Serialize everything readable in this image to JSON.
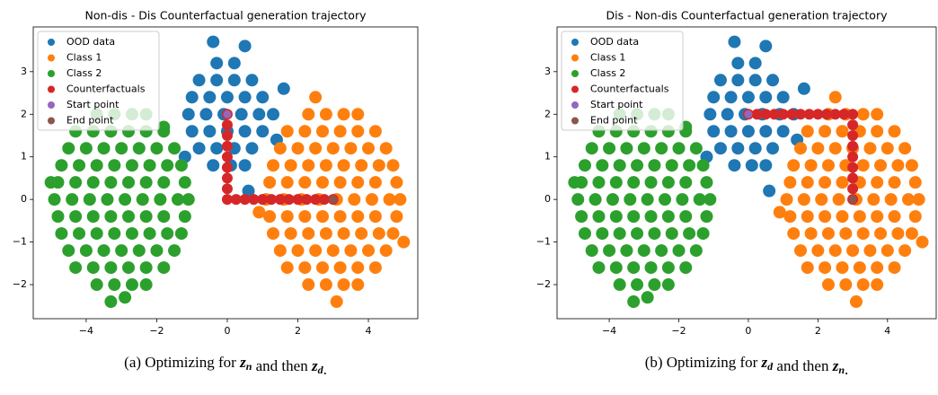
{
  "chart_data": [
    {
      "type": "scatter",
      "title": "Non-dis - Dis Counterfactual generation trajectory",
      "caption": [
        "(a) Optimizing for ",
        {
          "var": "z",
          "sub": "n"
        },
        " and then ",
        {
          "var": "z",
          "sub": "d"
        },
        "."
      ],
      "xlim": [
        -5.5,
        5.4
      ],
      "ylim": [
        -2.8,
        4.05
      ],
      "xticks": [
        {
          "value": -4,
          "label": "−4"
        },
        {
          "value": -2,
          "label": "−2"
        },
        0,
        2,
        4
      ],
      "yticks": [
        {
          "value": -2,
          "label": "−2"
        },
        {
          "value": -1,
          "label": "−1"
        },
        0,
        1,
        2,
        3
      ],
      "legend": "upper left",
      "series": [
        {
          "name": "OOD data",
          "color": "#1f77b4",
          "x": [
            -0.3,
            0.2,
            -0.8,
            -0.3,
            0.2,
            0.7,
            -1.0,
            -0.5,
            0,
            0.5,
            1.0,
            -1.1,
            -0.6,
            -0.1,
            0.4,
            0.9,
            1.3,
            -1.0,
            -0.5,
            0,
            0.5,
            1.0,
            -0.8,
            -0.3,
            0.2,
            0.7,
            -0.4,
            0.1,
            0.5,
            -0.4,
            0.5,
            1.6,
            -1.2,
            0.6,
            1.4
          ],
          "y": [
            3.2,
            3.2,
            2.8,
            2.8,
            2.8,
            2.8,
            2.4,
            2.4,
            2.4,
            2.4,
            2.4,
            2.0,
            2.0,
            2.0,
            2.0,
            2.0,
            2.0,
            1.6,
            1.6,
            1.6,
            1.6,
            1.6,
            1.2,
            1.2,
            1.2,
            1.2,
            0.8,
            0.8,
            0.8,
            3.7,
            3.6,
            2.6,
            1.0,
            0.2,
            1.4
          ]
        },
        {
          "name": "Class 1",
          "color": "#ff7f0e",
          "x": [
            2.3,
            2.8,
            3.3,
            3.7,
            1.7,
            2.2,
            2.7,
            3.2,
            3.7,
            4.2,
            1.5,
            2.0,
            2.5,
            3.0,
            3.5,
            4.0,
            4.5,
            1.3,
            1.8,
            2.3,
            2.8,
            3.3,
            3.8,
            4.3,
            4.7,
            1.2,
            1.7,
            2.2,
            2.7,
            3.2,
            3.7,
            4.2,
            4.8,
            1.1,
            1.6,
            2.1,
            2.6,
            3.1,
            3.6,
            4.1,
            4.6,
            4.9,
            1.2,
            1.7,
            2.2,
            2.7,
            3.2,
            3.7,
            4.2,
            4.8,
            1.3,
            1.8,
            2.3,
            2.8,
            3.3,
            3.8,
            4.3,
            4.7,
            1.5,
            2.0,
            2.5,
            3.0,
            3.5,
            4.0,
            4.5,
            1.7,
            2.2,
            2.7,
            3.2,
            3.7,
            4.2,
            2.3,
            2.8,
            3.3,
            3.7,
            2.5,
            0.9,
            5.0,
            3.1
          ],
          "y": [
            2,
            2,
            2,
            2,
            1.6,
            1.6,
            1.6,
            1.6,
            1.6,
            1.6,
            1.2,
            1.2,
            1.2,
            1.2,
            1.2,
            1.2,
            1.2,
            0.8,
            0.8,
            0.8,
            0.8,
            0.8,
            0.8,
            0.8,
            0.8,
            0.4,
            0.4,
            0.4,
            0.4,
            0.4,
            0.4,
            0.4,
            0.4,
            0,
            0,
            0,
            0,
            0,
            0,
            0,
            0,
            0,
            -0.4,
            -0.4,
            -0.4,
            -0.4,
            -0.4,
            -0.4,
            -0.4,
            -0.4,
            -0.8,
            -0.8,
            -0.8,
            -0.8,
            -0.8,
            -0.8,
            -0.8,
            -0.8,
            -1.2,
            -1.2,
            -1.2,
            -1.2,
            -1.2,
            -1.2,
            -1.2,
            -1.6,
            -1.6,
            -1.6,
            -1.6,
            -1.6,
            -1.6,
            -2,
            -2,
            -2,
            -2,
            2.4,
            -0.3,
            -1.0,
            -2.4
          ]
        },
        {
          "name": "Class 2",
          "color": "#2ca02c",
          "x": [
            -3.7,
            -3.2,
            -2.7,
            -2.3,
            -4.3,
            -3.8,
            -3.3,
            -2.8,
            -2.3,
            -1.8,
            -4.5,
            -4.0,
            -3.5,
            -3.0,
            -2.5,
            -2.0,
            -1.5,
            -4.7,
            -4.2,
            -3.7,
            -3.2,
            -2.7,
            -2.2,
            -1.7,
            -1.3,
            -4.8,
            -4.3,
            -3.8,
            -3.3,
            -2.8,
            -2.3,
            -1.8,
            -1.2,
            -4.9,
            -4.4,
            -3.9,
            -3.4,
            -2.9,
            -2.4,
            -1.9,
            -1.4,
            -1.1,
            -4.8,
            -4.3,
            -3.8,
            -3.3,
            -2.8,
            -2.3,
            -1.8,
            -1.2,
            -4.7,
            -4.2,
            -3.7,
            -3.2,
            -2.7,
            -2.2,
            -1.7,
            -1.3,
            -4.5,
            -4.0,
            -3.5,
            -3.0,
            -2.5,
            -2.0,
            -1.5,
            -4.3,
            -3.8,
            -3.3,
            -2.8,
            -2.3,
            -1.8,
            -3.7,
            -3.2,
            -2.7,
            -2.3,
            -3.3,
            -5.0,
            -1.8,
            -2.9
          ],
          "y": [
            2,
            2,
            2,
            2,
            1.6,
            1.6,
            1.6,
            1.6,
            1.6,
            1.6,
            1.2,
            1.2,
            1.2,
            1.2,
            1.2,
            1.2,
            1.2,
            0.8,
            0.8,
            0.8,
            0.8,
            0.8,
            0.8,
            0.8,
            0.8,
            0.4,
            0.4,
            0.4,
            0.4,
            0.4,
            0.4,
            0.4,
            0.4,
            0,
            0,
            0,
            0,
            0,
            0,
            0,
            0,
            0,
            -0.4,
            -0.4,
            -0.4,
            -0.4,
            -0.4,
            -0.4,
            -0.4,
            -0.4,
            -0.8,
            -0.8,
            -0.8,
            -0.8,
            -0.8,
            -0.8,
            -0.8,
            -0.8,
            -1.2,
            -1.2,
            -1.2,
            -1.2,
            -1.2,
            -1.2,
            -1.2,
            -1.6,
            -1.6,
            -1.6,
            -1.6,
            -1.6,
            -1.6,
            -2,
            -2,
            -2,
            -2,
            -2.4,
            0.4,
            1.7,
            -2.3
          ]
        },
        {
          "name": "Counterfactuals",
          "color": "#d62728",
          "x": [
            0,
            0,
            0,
            0,
            0,
            0,
            0,
            0,
            0,
            0.25,
            0.5,
            0.75,
            1,
            1.25,
            1.5,
            1.75,
            2,
            2.25,
            2.5,
            2.75,
            3
          ],
          "y": [
            2,
            1.75,
            1.5,
            1.25,
            1,
            0.75,
            0.5,
            0.25,
            0,
            0,
            0,
            0,
            0,
            0,
            0,
            0,
            0,
            0,
            0,
            0,
            0
          ]
        },
        {
          "name": "Start point",
          "color": "#9467bd",
          "x": [
            0
          ],
          "y": [
            2
          ]
        },
        {
          "name": "End point",
          "color": "#8c564b",
          "x": [
            3
          ],
          "y": [
            0
          ]
        }
      ]
    },
    {
      "type": "scatter",
      "title": "Dis - Non-dis Counterfactual generation trajectory",
      "caption": [
        "(b) Optimizing for ",
        {
          "var": "z",
          "sub": "d"
        },
        " and then ",
        {
          "var": "z",
          "sub": "n"
        },
        "."
      ],
      "xlim": [
        -5.5,
        5.4
      ],
      "ylim": [
        -2.8,
        4.05
      ],
      "xticks": [
        {
          "value": -4,
          "label": "−4"
        },
        {
          "value": -2,
          "label": "−2"
        },
        0,
        2,
        4
      ],
      "yticks": [
        {
          "value": -2,
          "label": "−2"
        },
        {
          "value": -1,
          "label": "−1"
        },
        0,
        1,
        2,
        3
      ],
      "legend": "upper left",
      "series": [
        {
          "name": "OOD data",
          "color": "#1f77b4",
          "x": [
            -0.3,
            0.2,
            -0.8,
            -0.3,
            0.2,
            0.7,
            -1.0,
            -0.5,
            0,
            0.5,
            1.0,
            -1.1,
            -0.6,
            -0.1,
            0.4,
            0.9,
            1.3,
            -1.0,
            -0.5,
            0,
            0.5,
            1.0,
            -0.8,
            -0.3,
            0.2,
            0.7,
            -0.4,
            0.1,
            0.5,
            -0.4,
            0.5,
            1.6,
            -1.2,
            0.6,
            1.4
          ],
          "y": [
            3.2,
            3.2,
            2.8,
            2.8,
            2.8,
            2.8,
            2.4,
            2.4,
            2.4,
            2.4,
            2.4,
            2.0,
            2.0,
            2.0,
            2.0,
            2.0,
            2.0,
            1.6,
            1.6,
            1.6,
            1.6,
            1.6,
            1.2,
            1.2,
            1.2,
            1.2,
            0.8,
            0.8,
            0.8,
            3.7,
            3.6,
            2.6,
            1.0,
            0.2,
            1.4
          ]
        },
        {
          "name": "Class 1",
          "color": "#ff7f0e",
          "x": [
            2.3,
            2.8,
            3.3,
            3.7,
            1.7,
            2.2,
            2.7,
            3.2,
            3.7,
            4.2,
            1.5,
            2.0,
            2.5,
            3.0,
            3.5,
            4.0,
            4.5,
            1.3,
            1.8,
            2.3,
            2.8,
            3.3,
            3.8,
            4.3,
            4.7,
            1.2,
            1.7,
            2.2,
            2.7,
            3.2,
            3.7,
            4.2,
            4.8,
            1.1,
            1.6,
            2.1,
            2.6,
            3.1,
            3.6,
            4.1,
            4.6,
            4.9,
            1.2,
            1.7,
            2.2,
            2.7,
            3.2,
            3.7,
            4.2,
            4.8,
            1.3,
            1.8,
            2.3,
            2.8,
            3.3,
            3.8,
            4.3,
            4.7,
            1.5,
            2.0,
            2.5,
            3.0,
            3.5,
            4.0,
            4.5,
            1.7,
            2.2,
            2.7,
            3.2,
            3.7,
            4.2,
            2.3,
            2.8,
            3.3,
            3.7,
            2.5,
            0.9,
            5.0,
            3.1
          ],
          "y": [
            2,
            2,
            2,
            2,
            1.6,
            1.6,
            1.6,
            1.6,
            1.6,
            1.6,
            1.2,
            1.2,
            1.2,
            1.2,
            1.2,
            1.2,
            1.2,
            0.8,
            0.8,
            0.8,
            0.8,
            0.8,
            0.8,
            0.8,
            0.8,
            0.4,
            0.4,
            0.4,
            0.4,
            0.4,
            0.4,
            0.4,
            0.4,
            0,
            0,
            0,
            0,
            0,
            0,
            0,
            0,
            0,
            -0.4,
            -0.4,
            -0.4,
            -0.4,
            -0.4,
            -0.4,
            -0.4,
            -0.4,
            -0.8,
            -0.8,
            -0.8,
            -0.8,
            -0.8,
            -0.8,
            -0.8,
            -0.8,
            -1.2,
            -1.2,
            -1.2,
            -1.2,
            -1.2,
            -1.2,
            -1.2,
            -1.6,
            -1.6,
            -1.6,
            -1.6,
            -1.6,
            -1.6,
            -2,
            -2,
            -2,
            -2,
            2.4,
            -0.3,
            -1.0,
            -2.4
          ]
        },
        {
          "name": "Class 2",
          "color": "#2ca02c",
          "x": [
            -3.7,
            -3.2,
            -2.7,
            -2.3,
            -4.3,
            -3.8,
            -3.3,
            -2.8,
            -2.3,
            -1.8,
            -4.5,
            -4.0,
            -3.5,
            -3.0,
            -2.5,
            -2.0,
            -1.5,
            -4.7,
            -4.2,
            -3.7,
            -3.2,
            -2.7,
            -2.2,
            -1.7,
            -1.3,
            -4.8,
            -4.3,
            -3.8,
            -3.3,
            -2.8,
            -2.3,
            -1.8,
            -1.2,
            -4.9,
            -4.4,
            -3.9,
            -3.4,
            -2.9,
            -2.4,
            -1.9,
            -1.4,
            -1.1,
            -4.8,
            -4.3,
            -3.8,
            -3.3,
            -2.8,
            -2.3,
            -1.8,
            -1.2,
            -4.7,
            -4.2,
            -3.7,
            -3.2,
            -2.7,
            -2.2,
            -1.7,
            -1.3,
            -4.5,
            -4.0,
            -3.5,
            -3.0,
            -2.5,
            -2.0,
            -1.5,
            -4.3,
            -3.8,
            -3.3,
            -2.8,
            -2.3,
            -1.8,
            -3.7,
            -3.2,
            -2.7,
            -2.3,
            -3.3,
            -5.0,
            -1.8,
            -2.9
          ],
          "y": [
            2,
            2,
            2,
            2,
            1.6,
            1.6,
            1.6,
            1.6,
            1.6,
            1.6,
            1.2,
            1.2,
            1.2,
            1.2,
            1.2,
            1.2,
            1.2,
            0.8,
            0.8,
            0.8,
            0.8,
            0.8,
            0.8,
            0.8,
            0.8,
            0.4,
            0.4,
            0.4,
            0.4,
            0.4,
            0.4,
            0.4,
            0.4,
            0,
            0,
            0,
            0,
            0,
            0,
            0,
            0,
            0,
            -0.4,
            -0.4,
            -0.4,
            -0.4,
            -0.4,
            -0.4,
            -0.4,
            -0.4,
            -0.8,
            -0.8,
            -0.8,
            -0.8,
            -0.8,
            -0.8,
            -0.8,
            -0.8,
            -1.2,
            -1.2,
            -1.2,
            -1.2,
            -1.2,
            -1.2,
            -1.2,
            -1.6,
            -1.6,
            -1.6,
            -1.6,
            -1.6,
            -1.6,
            -2,
            -2,
            -2,
            -2,
            -2.4,
            0.4,
            1.7,
            -2.3
          ]
        },
        {
          "name": "Counterfactuals",
          "color": "#d62728",
          "x": [
            0,
            0.25,
            0.5,
            0.75,
            1,
            1.25,
            1.5,
            1.75,
            2,
            2.25,
            2.5,
            2.75,
            3,
            3,
            3,
            3,
            3,
            3,
            3,
            3,
            3
          ],
          "y": [
            2,
            2,
            2,
            2,
            2,
            2,
            2,
            2,
            2,
            2,
            2,
            2,
            2,
            1.75,
            1.5,
            1.25,
            1,
            0.75,
            0.5,
            0.25,
            0
          ]
        },
        {
          "name": "Start point",
          "color": "#9467bd",
          "x": [
            0
          ],
          "y": [
            2
          ]
        },
        {
          "name": "End point",
          "color": "#8c564b",
          "x": [
            3
          ],
          "y": [
            0
          ]
        }
      ]
    }
  ]
}
